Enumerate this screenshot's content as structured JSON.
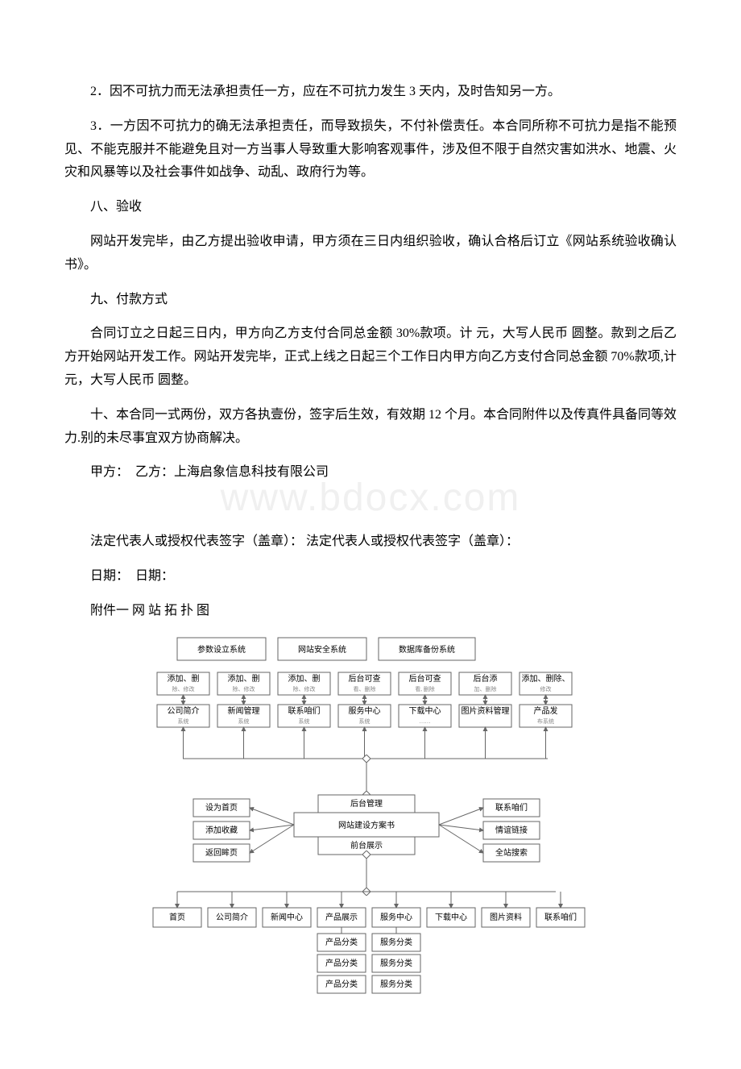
{
  "paragraphs": {
    "p1": "2．因不可抗力而无法承担责任一方，应在不可抗力发生 3 天内，及时告知另一方。",
    "p2": "3．一方因不可抗力的确无法承担责任，而导致损失，不付补偿责任。本合同所称不可抗力是指不能预见、不能克服并不能避免且对一方当事人导致重大影响客观事件，涉及但不限于自然灾害如洪水、地震、火灾和风暴等以及社会事件如战争、动乱、政府行为等。",
    "p3": "八、验收",
    "p4": "网站开发完毕，由乙方提出验收申请，甲方须在三日内组织验收，确认合格后订立《网站系统验收确认书》。",
    "p5": "九、付款方式",
    "p6": "合同订立之日起三日内，甲方向乙方支付合同总金额 30%款项。计 元，大写人民币  圆整。款到之后乙方开始网站开发工作。网站开发完毕，正式上线之日起三个工作日内甲方向乙方支付合同总金额 70%款项,计 元，大写人民币  圆整。",
    "p7": "十、本合同一式两份，双方各执壹份，签字后生效，有效期 12 个月。本合同附件以及传真件具备同等效力.别的未尽事宜双方协商解决。",
    "p8": "甲方：　乙方：上海启象信息科技有限公司",
    "p9": "法定代表人或授权代表签字（盖章）： 法定代表人或授权代表签字（盖章）：",
    "p10": "日期：　日期：",
    "p11": "附件一 网 站 拓 扑 图"
  },
  "watermark": "www.bdocx.com",
  "diagram": {
    "top_systems": [
      "参数设立系统",
      "网站安全系统",
      "数据库备份系统"
    ],
    "row2_top": [
      {
        "l1": "添加、删",
        "l2": "除、修改"
      },
      {
        "l1": "添加、删",
        "l2": "除、修改"
      },
      {
        "l1": "添加、删",
        "l2": "除、修改"
      },
      {
        "l1": "后台可查",
        "l2": "看、删除"
      },
      {
        "l1": "后台可查",
        "l2": "看, 删除"
      },
      {
        "l1": "后台添",
        "l2": "加、删除"
      },
      {
        "l1": "添加、删除、",
        "l2": "修改"
      }
    ],
    "row2_bot": [
      {
        "l1": "公司简介",
        "l2": "系统"
      },
      {
        "l1": "新闻管理",
        "l2": "系统"
      },
      {
        "l1": "联系咱们",
        "l2": "系统"
      },
      {
        "l1": "服务中心",
        "l2": "系统"
      },
      {
        "l1": "下载中心",
        "l2": "……"
      },
      {
        "l1": "图片资料管理",
        "l2": ""
      },
      {
        "l1": "产品发",
        "l2": "布系统"
      }
    ],
    "center_top": "后台管理",
    "center_main": "网站建设方案书",
    "center_bot": "前台展示",
    "left_buttons": [
      "设为首页",
      "添加收藏",
      "返回眸页"
    ],
    "right_buttons": [
      "联系咱们",
      "情谊链接",
      "全站搜索"
    ],
    "bottom_row": [
      "首页",
      "公司简介",
      "新闻中心",
      "产品展示",
      "服务中心",
      "下载中心",
      "图片资料",
      "联系咱们"
    ],
    "sub_left": [
      "产品分类",
      "产品分类",
      "产品分类"
    ],
    "sub_right": [
      "服务分类",
      "服务分类",
      "服务分类"
    ]
  }
}
